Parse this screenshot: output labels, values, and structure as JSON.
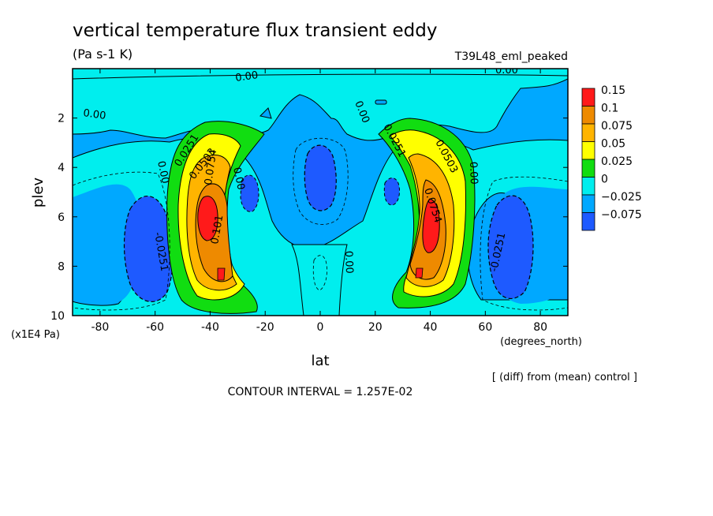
{
  "chart_data": {
    "type": "contour",
    "title": "vertical temperature flux transient eddy",
    "units": "(Pa s-1 K)",
    "dataset": "T39L48_eml_peaked",
    "xlabel": "lat",
    "x_units": "(degrees_north)",
    "ylabel": "plev",
    "y_units": "(x1E4 Pa)",
    "xlim": [
      -90,
      90
    ],
    "ylim": [
      10,
      0
    ],
    "x_ticks": [
      "-80",
      "-60",
      "-40",
      "-20",
      "0",
      "20",
      "40",
      "60",
      "80"
    ],
    "y_ticks": [
      "2",
      "4",
      "6",
      "8",
      "10"
    ],
    "contour_interval_text": "CONTOUR INTERVAL = 1.257E-02",
    "note": "[ (diff) from (mean) control ]",
    "colorbar": [
      {
        "label": "0.15",
        "color": "#ff1a1a"
      },
      {
        "label": "0.1",
        "color": "#ee8a00"
      },
      {
        "label": "0.075",
        "color": "#ffb400"
      },
      {
        "label": "0.05",
        "color": "#ffff00"
      },
      {
        "label": "0.025",
        "color": "#11dd11"
      },
      {
        "label": "0",
        "color": "#00eeee"
      },
      {
        "label": "−0.025",
        "color": "#00a8ff"
      },
      {
        "label": "−0.075",
        "color": "#1e5aff"
      }
    ],
    "features": [
      {
        "kind": "max",
        "lat": -38,
        "plev": 6.5,
        "value": 0.15
      },
      {
        "kind": "max",
        "lat": 38,
        "plev": 6.5,
        "value": 0.15
      },
      {
        "kind": "min",
        "lat": -63,
        "plev": 7.0,
        "value": -0.075
      },
      {
        "kind": "min",
        "lat": 64,
        "plev": 7.0,
        "value": -0.075
      },
      {
        "kind": "min",
        "lat": 0,
        "plev": 4.5,
        "value": -0.075
      },
      {
        "kind": "min",
        "lat": -25,
        "plev": 5.0,
        "value": -0.075
      },
      {
        "kind": "min",
        "lat": 25,
        "plev": 5.0,
        "value": -0.075
      }
    ],
    "contour_labels": [
      "0.00",
      "0.00",
      "0.00",
      "0.00",
      "0.00",
      "0.00",
      "0.0251",
      "0.0503",
      "0.0754",
      "0.101",
      "-0.0251",
      "0.0251",
      "0.0503",
      "0.0754",
      "0.00",
      "-0.0251",
      "0.00"
    ]
  }
}
